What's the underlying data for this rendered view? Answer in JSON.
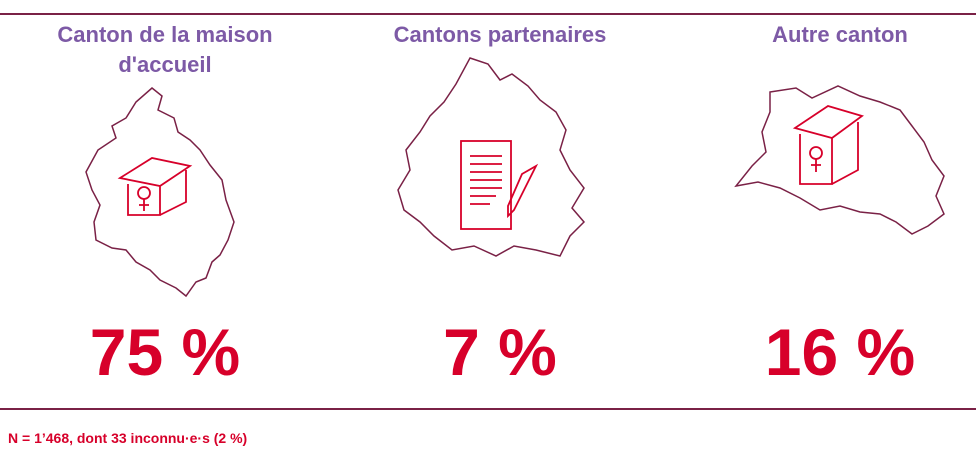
{
  "columns": [
    {
      "title": "Canton de la maison d'accueil",
      "value": "75 %"
    },
    {
      "title": "Cantons partenaires",
      "value": "7 %"
    },
    {
      "title": "Autre canton",
      "value": "16 %"
    }
  ],
  "footnote": "N = 1’468, dont 33 inconnu·e·s (2 %)"
}
